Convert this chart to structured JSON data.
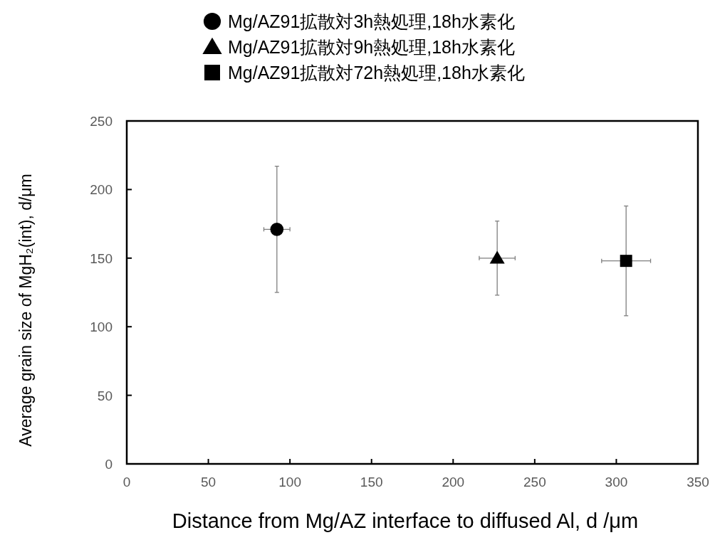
{
  "chart_data": {
    "type": "scatter",
    "xlabel": "Distance from Mg/AZ interface to diffused Al, d /μm",
    "ylabel": "Average grain size of MgH₂(int), d/μm",
    "xlim": [
      0,
      350
    ],
    "xticks": [
      0,
      50,
      100,
      150,
      200,
      250,
      300,
      350
    ],
    "ylim": [
      0,
      250
    ],
    "yticks": [
      0,
      50,
      100,
      150,
      200,
      250
    ],
    "legend": "top",
    "series": [
      {
        "name": "Mg/AZ91拡散対3h熱処理,18h水素化",
        "color": "#000000",
        "marker": "circle",
        "x": [
          92
        ],
        "values": [
          171
        ],
        "errors": [
          46
        ],
        "xerrors": [
          8
        ]
      },
      {
        "name": "Mg/AZ91拡散対9h熱処理,18h水素化",
        "color": "#000000",
        "marker": "triangle",
        "x": [
          227
        ],
        "values": [
          150
        ],
        "errors": [
          27
        ],
        "xerrors": [
          11
        ]
      },
      {
        "name": "Mg/AZ91拡散対72h熱処理,18h水素化",
        "color": "#000000",
        "marker": "square",
        "x": [
          306
        ],
        "values": [
          148
        ],
        "errors": [
          40
        ],
        "xerrors": [
          15
        ]
      }
    ]
  }
}
